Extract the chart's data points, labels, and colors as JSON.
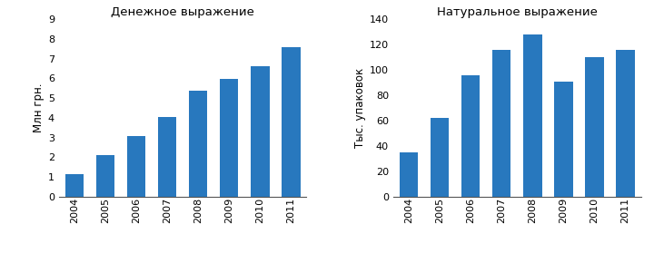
{
  "years": [
    "2004",
    "2005",
    "2006",
    "2007",
    "2008",
    "2009",
    "2010",
    "2011"
  ],
  "money_values": [
    1.15,
    2.1,
    3.05,
    4.05,
    5.35,
    5.95,
    6.6,
    7.6
  ],
  "natural_values": [
    35,
    62,
    96,
    116,
    128,
    91,
    110,
    116
  ],
  "title_left": "Денежное выражение",
  "title_right": "Натуральное выражение",
  "ylabel_left": "Млн грн.",
  "ylabel_right": "Тыс. упаковок",
  "bar_color": "#2878BE",
  "ylim_left": [
    0,
    9
  ],
  "ylim_right": [
    0,
    140
  ],
  "yticks_left": [
    0,
    1,
    2,
    3,
    4,
    5,
    6,
    7,
    8,
    9
  ],
  "yticks_right": [
    0,
    20,
    40,
    60,
    80,
    100,
    120,
    140
  ],
  "bg_color": "#ffffff"
}
